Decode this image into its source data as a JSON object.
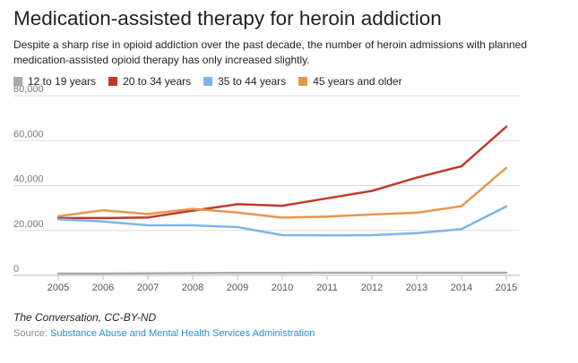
{
  "header": {
    "title": "Medication-assisted therapy for heroin addiction",
    "subtitle": "Despite a sharp rise in opioid addiction over the past decade, the number of heroin admissions with planned medication-assisted opioid therapy has only increased slightly."
  },
  "footer": {
    "credit": "The Conversation, CC-BY-ND",
    "source_label": "Source:",
    "source_link": "Substance Abuse and Mental Health Services Administration"
  },
  "chart_data": {
    "type": "line",
    "title": "Medication-assisted therapy for heroin addiction",
    "xlabel": "",
    "ylabel": "",
    "x": [
      "2005",
      "2006",
      "2007",
      "2008",
      "2009",
      "2010",
      "2011",
      "2012",
      "2013",
      "2014",
      "2015"
    ],
    "y_ticks": [
      "0",
      "20,000",
      "40,000",
      "60,000",
      "80,000"
    ],
    "y_tick_values": [
      0,
      20000,
      40000,
      60000,
      80000
    ],
    "ylim": [
      0,
      80000
    ],
    "grid": true,
    "legend_position": "top-left",
    "series": [
      {
        "name": "12 to 19 years",
        "color": "#aaaaaa",
        "values": [
          800,
          800,
          900,
          1000,
          1100,
          1100,
          1200,
          1200,
          1200,
          1200,
          1200
        ]
      },
      {
        "name": "20 to 34 years",
        "color": "#c0392b",
        "values": [
          25500,
          25500,
          25800,
          28800,
          31700,
          31000,
          34300,
          37600,
          43500,
          48600,
          66200
        ]
      },
      {
        "name": "35 to 44 years",
        "color": "#7fb4e8",
        "values": [
          25000,
          24000,
          22300,
          22300,
          21500,
          17900,
          17800,
          17900,
          18800,
          20600,
          30700
        ]
      },
      {
        "name": "45 years and older",
        "color": "#e8964a",
        "values": [
          26300,
          29000,
          27300,
          29600,
          28000,
          25700,
          26200,
          27100,
          27900,
          30800,
          47900
        ]
      }
    ]
  }
}
